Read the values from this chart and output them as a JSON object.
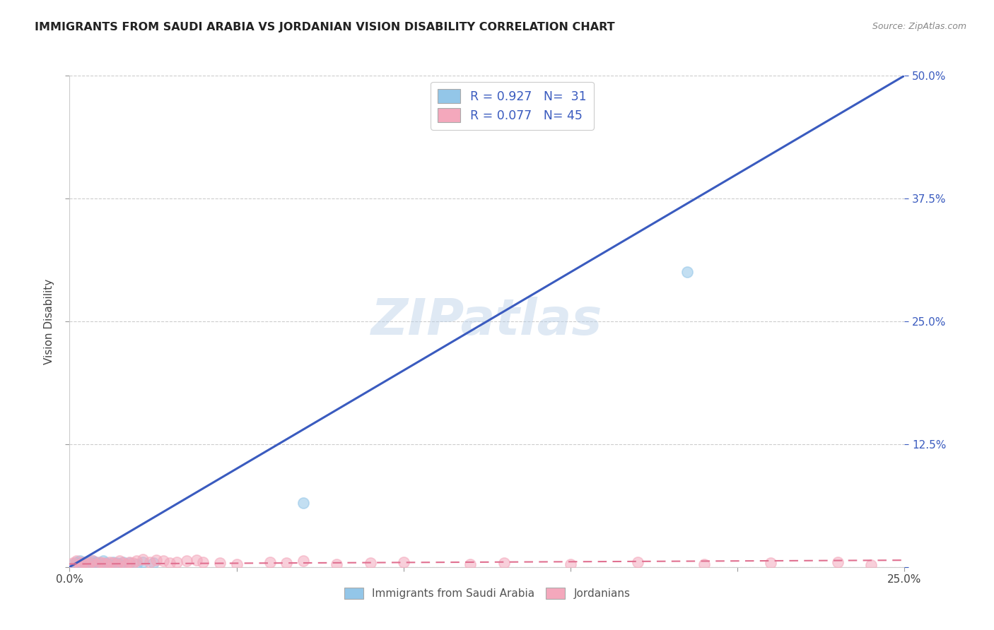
{
  "title": "IMMIGRANTS FROM SAUDI ARABIA VS JORDANIAN VISION DISABILITY CORRELATION CHART",
  "source": "Source: ZipAtlas.com",
  "ylabel": "Vision Disability",
  "xlim": [
    0.0,
    0.25
  ],
  "ylim": [
    0.0,
    0.5
  ],
  "xticks": [
    0.0,
    0.05,
    0.1,
    0.15,
    0.2,
    0.25
  ],
  "yticks": [
    0.0,
    0.125,
    0.25,
    0.375,
    0.5
  ],
  "xtick_labels": [
    "0.0%",
    "",
    "",
    "",
    "",
    "25.0%"
  ],
  "ytick_labels_right": [
    "",
    "12.5%",
    "25.0%",
    "37.5%",
    "50.0%"
  ],
  "legend_label1": "Immigrants from Saudi Arabia",
  "legend_label2": "Jordanians",
  "blue_color": "#93c6e8",
  "pink_color": "#f4a8bc",
  "line_blue": "#3a5bbf",
  "line_pink": "#e07090",
  "watermark": "ZIPatlas",
  "blue_scatter_x": [
    0.001,
    0.002,
    0.002,
    0.003,
    0.003,
    0.004,
    0.004,
    0.005,
    0.005,
    0.006,
    0.006,
    0.007,
    0.007,
    0.008,
    0.008,
    0.009,
    0.009,
    0.01,
    0.01,
    0.011,
    0.012,
    0.013,
    0.014,
    0.015,
    0.016,
    0.018,
    0.02,
    0.022,
    0.025,
    0.07,
    0.185
  ],
  "blue_scatter_y": [
    0.003,
    0.005,
    0.002,
    0.004,
    0.006,
    0.003,
    0.005,
    0.002,
    0.004,
    0.003,
    0.005,
    0.004,
    0.006,
    0.003,
    0.005,
    0.002,
    0.004,
    0.003,
    0.006,
    0.004,
    0.003,
    0.005,
    0.004,
    0.003,
    0.005,
    0.004,
    0.003,
    0.005,
    0.004,
    0.065,
    0.3
  ],
  "pink_scatter_x": [
    0.001,
    0.002,
    0.003,
    0.004,
    0.005,
    0.006,
    0.007,
    0.008,
    0.009,
    0.01,
    0.011,
    0.012,
    0.013,
    0.014,
    0.015,
    0.016,
    0.017,
    0.018,
    0.019,
    0.02,
    0.022,
    0.024,
    0.026,
    0.028,
    0.03,
    0.032,
    0.035,
    0.038,
    0.04,
    0.045,
    0.05,
    0.06,
    0.065,
    0.07,
    0.08,
    0.09,
    0.1,
    0.12,
    0.13,
    0.15,
    0.17,
    0.19,
    0.21,
    0.23,
    0.24
  ],
  "pink_scatter_y": [
    0.004,
    0.006,
    0.003,
    0.005,
    0.003,
    0.004,
    0.006,
    0.003,
    0.005,
    0.004,
    0.003,
    0.005,
    0.004,
    0.003,
    0.006,
    0.004,
    0.003,
    0.005,
    0.004,
    0.006,
    0.008,
    0.005,
    0.007,
    0.006,
    0.004,
    0.005,
    0.006,
    0.007,
    0.005,
    0.004,
    0.003,
    0.005,
    0.004,
    0.006,
    0.003,
    0.004,
    0.005,
    0.003,
    0.004,
    0.003,
    0.005,
    0.003,
    0.004,
    0.005,
    0.002
  ],
  "blue_line_x": [
    -0.005,
    0.255
  ],
  "blue_line_y": [
    -0.01,
    0.51
  ],
  "pink_line_x": [
    -0.005,
    0.255
  ],
  "pink_line_y": [
    0.003,
    0.007
  ]
}
